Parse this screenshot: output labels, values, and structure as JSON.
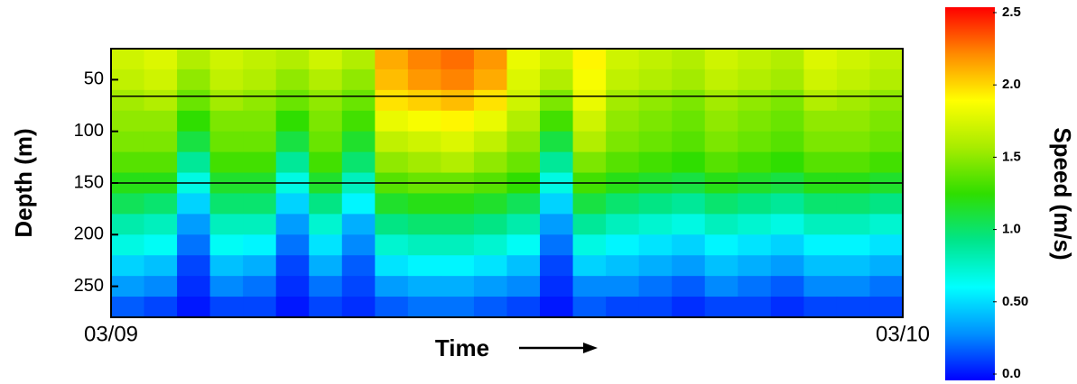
{
  "chart_data": {
    "type": "heatmap",
    "x_label": "Time",
    "y_label": "Depth (m)",
    "colorbar_label": "Speed (m/s)",
    "categories": [
      "03/09",
      null,
      null,
      null,
      null,
      null,
      null,
      null,
      null,
      null,
      null,
      null,
      null,
      null,
      null,
      null,
      null,
      null,
      null,
      null,
      null,
      null,
      null,
      "03/10"
    ],
    "y": [
      30,
      50,
      70,
      90,
      110,
      130,
      150,
      170,
      190,
      210,
      230,
      250,
      270
    ],
    "ylim": [
      20,
      280
    ],
    "yticks": [
      50,
      100,
      150,
      200,
      250
    ],
    "y_inverted": true,
    "hlines": [
      66,
      150
    ],
    "clim": [
      0,
      2.5
    ],
    "cticks": [
      {
        "value": 0,
        "label": "0.0"
      },
      {
        "value": 0.5,
        "label": "0.50"
      },
      {
        "value": 1,
        "label": "1.0"
      },
      {
        "value": 1.5,
        "label": "1.5"
      },
      {
        "value": 2,
        "label": "2.0"
      },
      {
        "value": 2.5,
        "label": "2.5"
      }
    ],
    "colormap": [
      "#0000ff",
      "#0090ff",
      "#00ffff",
      "#00e58a",
      "#2fde00",
      "#a8ec00",
      "#ffff00",
      "#ff8a00",
      "#ff0000"
    ],
    "values": [
      [
        1.7,
        1.75,
        1.6,
        1.7,
        1.65,
        1.6,
        1.7,
        1.6,
        2.1,
        2.2,
        2.25,
        2.15,
        1.8,
        1.7,
        1.9,
        1.7,
        1.65,
        1.6,
        1.7,
        1.65,
        1.6,
        1.75,
        1.7,
        1.65
      ],
      [
        1.65,
        1.7,
        1.5,
        1.65,
        1.6,
        1.5,
        1.6,
        1.5,
        2.05,
        2.15,
        2.2,
        2.1,
        1.75,
        1.6,
        1.85,
        1.65,
        1.6,
        1.55,
        1.65,
        1.6,
        1.55,
        1.7,
        1.65,
        1.6
      ],
      [
        1.55,
        1.6,
        1.4,
        1.55,
        1.5,
        1.4,
        1.5,
        1.4,
        1.95,
        2.0,
        2.05,
        1.95,
        1.7,
        1.45,
        1.8,
        1.55,
        1.5,
        1.45,
        1.55,
        1.5,
        1.45,
        1.6,
        1.55,
        1.5
      ],
      [
        1.5,
        1.5,
        1.25,
        1.45,
        1.45,
        1.25,
        1.45,
        1.3,
        1.8,
        1.85,
        1.9,
        1.8,
        1.6,
        1.3,
        1.7,
        1.5,
        1.45,
        1.4,
        1.5,
        1.45,
        1.4,
        1.5,
        1.5,
        1.45
      ],
      [
        1.45,
        1.45,
        1.1,
        1.4,
        1.4,
        1.1,
        1.4,
        1.15,
        1.65,
        1.7,
        1.75,
        1.65,
        1.5,
        1.1,
        1.6,
        1.45,
        1.4,
        1.35,
        1.45,
        1.4,
        1.35,
        1.45,
        1.45,
        1.4
      ],
      [
        1.35,
        1.35,
        0.9,
        1.3,
        1.3,
        0.9,
        1.3,
        1.0,
        1.5,
        1.55,
        1.6,
        1.5,
        1.4,
        0.9,
        1.45,
        1.35,
        1.3,
        1.25,
        1.35,
        1.3,
        1.25,
        1.35,
        1.35,
        1.3
      ],
      [
        1.2,
        1.2,
        0.7,
        1.15,
        1.15,
        0.7,
        1.15,
        0.8,
        1.35,
        1.4,
        1.4,
        1.35,
        1.25,
        0.7,
        1.3,
        1.2,
        1.15,
        1.1,
        1.2,
        1.15,
        1.1,
        1.2,
        1.2,
        1.15
      ],
      [
        1.05,
        1.0,
        0.5,
        1.0,
        1.0,
        0.5,
        0.95,
        0.6,
        1.15,
        1.2,
        1.2,
        1.15,
        1.05,
        0.5,
        1.1,
        1.0,
        0.95,
        0.9,
        1.0,
        0.95,
        0.9,
        1.0,
        1.0,
        0.95
      ],
      [
        0.85,
        0.8,
        0.35,
        0.8,
        0.8,
        0.35,
        0.75,
        0.4,
        0.95,
        1.0,
        1.0,
        0.95,
        0.85,
        0.35,
        0.9,
        0.8,
        0.75,
        0.7,
        0.8,
        0.75,
        0.7,
        0.8,
        0.8,
        0.75
      ],
      [
        0.7,
        0.65,
        0.25,
        0.65,
        0.6,
        0.25,
        0.55,
        0.3,
        0.75,
        0.8,
        0.8,
        0.75,
        0.65,
        0.25,
        0.7,
        0.6,
        0.55,
        0.5,
        0.6,
        0.55,
        0.5,
        0.6,
        0.6,
        0.55
      ],
      [
        0.5,
        0.45,
        0.15,
        0.45,
        0.4,
        0.15,
        0.4,
        0.2,
        0.55,
        0.6,
        0.6,
        0.55,
        0.45,
        0.15,
        0.5,
        0.45,
        0.4,
        0.35,
        0.45,
        0.4,
        0.35,
        0.45,
        0.45,
        0.4
      ],
      [
        0.35,
        0.3,
        0.1,
        0.3,
        0.25,
        0.1,
        0.25,
        0.15,
        0.35,
        0.4,
        0.4,
        0.35,
        0.3,
        0.1,
        0.3,
        0.3,
        0.25,
        0.2,
        0.3,
        0.25,
        0.2,
        0.3,
        0.3,
        0.25
      ],
      [
        0.2,
        0.15,
        0.05,
        0.15,
        0.15,
        0.05,
        0.15,
        0.1,
        0.2,
        0.25,
        0.25,
        0.2,
        0.15,
        0.05,
        0.2,
        0.15,
        0.15,
        0.1,
        0.15,
        0.15,
        0.1,
        0.15,
        0.15,
        0.15
      ]
    ]
  }
}
